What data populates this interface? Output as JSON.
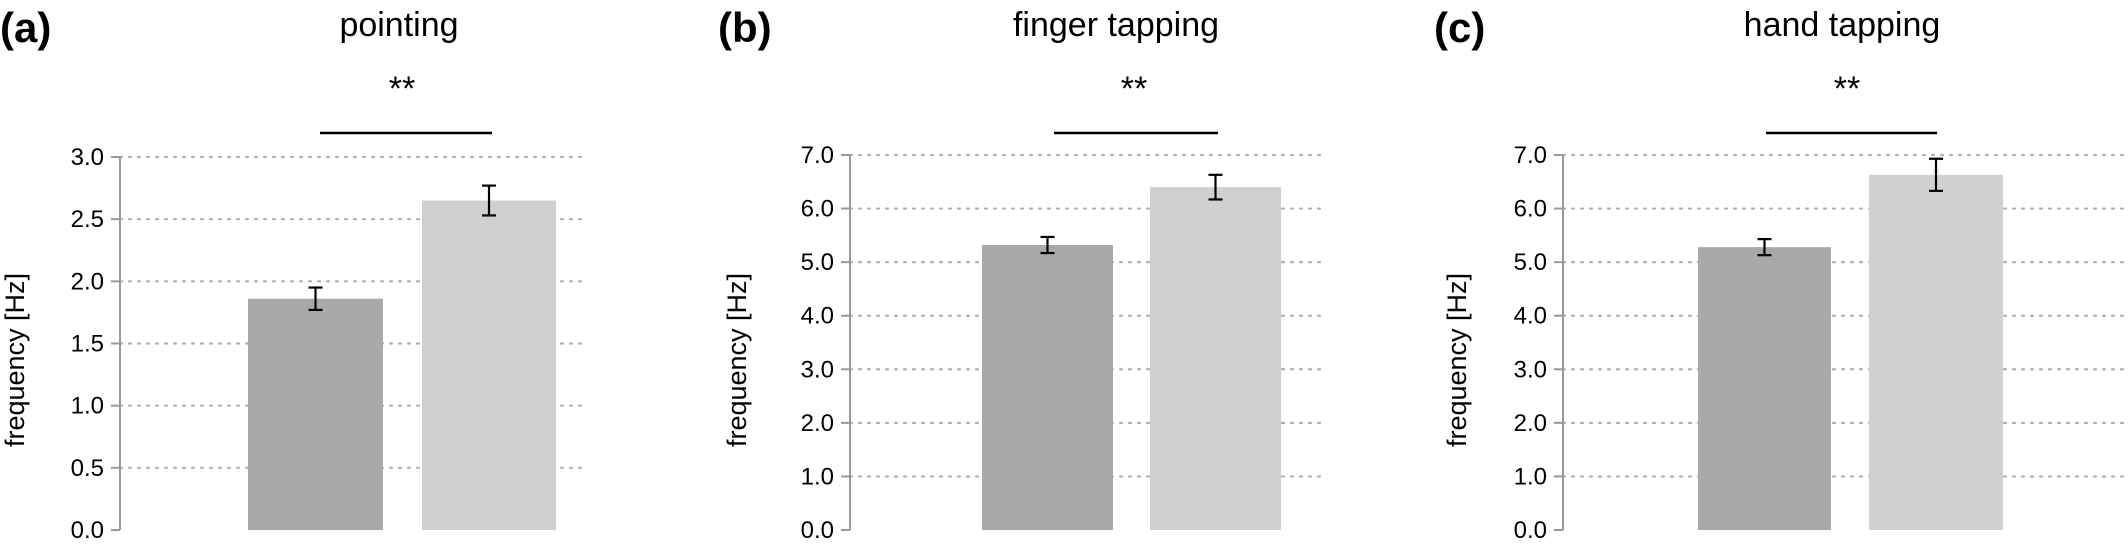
{
  "chart_data": [
    {
      "type": "bar",
      "panel_label": "(a)",
      "title": "pointing",
      "xlabel": "",
      "ylabel": "frequency [Hz]",
      "ylim": [
        0,
        3.0
      ],
      "yticks": [
        "0.0",
        "0.5",
        "1.0",
        "1.5",
        "2.0",
        "2.5",
        "3.0"
      ],
      "grid": true,
      "categories": [
        "",
        ""
      ],
      "values": [
        1.86,
        2.65
      ],
      "errors": [
        0.09,
        0.12
      ],
      "bar_colors": [
        "#a9a9a9",
        "#d0d0d0"
      ],
      "significance": "**"
    },
    {
      "type": "bar",
      "panel_label": "(b)",
      "title": "finger tapping",
      "xlabel": "",
      "ylabel": "frequency [Hz]",
      "ylim": [
        0,
        7.0
      ],
      "yticks": [
        "0.0",
        "1.0",
        "2.0",
        "3.0",
        "4.0",
        "5.0",
        "6.0",
        "7.0"
      ],
      "grid": true,
      "categories": [
        "",
        ""
      ],
      "values": [
        5.32,
        6.4
      ],
      "errors": [
        0.15,
        0.23
      ],
      "bar_colors": [
        "#a9a9a9",
        "#d0d0d0"
      ],
      "significance": "**"
    },
    {
      "type": "bar",
      "panel_label": "(c)",
      "title": "hand tapping",
      "xlabel": "",
      "ylabel": "frequency [Hz]",
      "ylim": [
        0,
        7.0
      ],
      "yticks": [
        "0.0",
        "1.0",
        "2.0",
        "3.0",
        "4.0",
        "5.0",
        "6.0",
        "7.0"
      ],
      "grid": true,
      "categories": [
        "",
        ""
      ],
      "values": [
        5.28,
        6.63
      ],
      "errors": [
        0.15,
        0.3
      ],
      "bar_colors": [
        "#a9a9a9",
        "#d0d0d0"
      ],
      "significance": "**"
    }
  ]
}
